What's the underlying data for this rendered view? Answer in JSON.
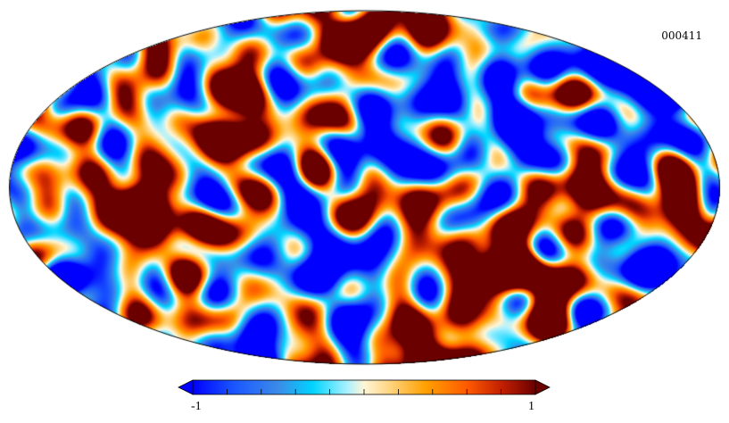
{
  "map": {
    "id_label": "000411",
    "projection": "mollweide",
    "pattern": "random-field"
  },
  "colorbar": {
    "min_label": "-1",
    "max_label": "1",
    "tick_count": 10,
    "colors": [
      "#0000ff",
      "#1a56ff",
      "#3b8be8",
      "#00d4ff",
      "#a8f0ff",
      "#fff6d8",
      "#ffd27a",
      "#ffa000",
      "#ff5a00",
      "#c42000",
      "#6b0000"
    ]
  }
}
